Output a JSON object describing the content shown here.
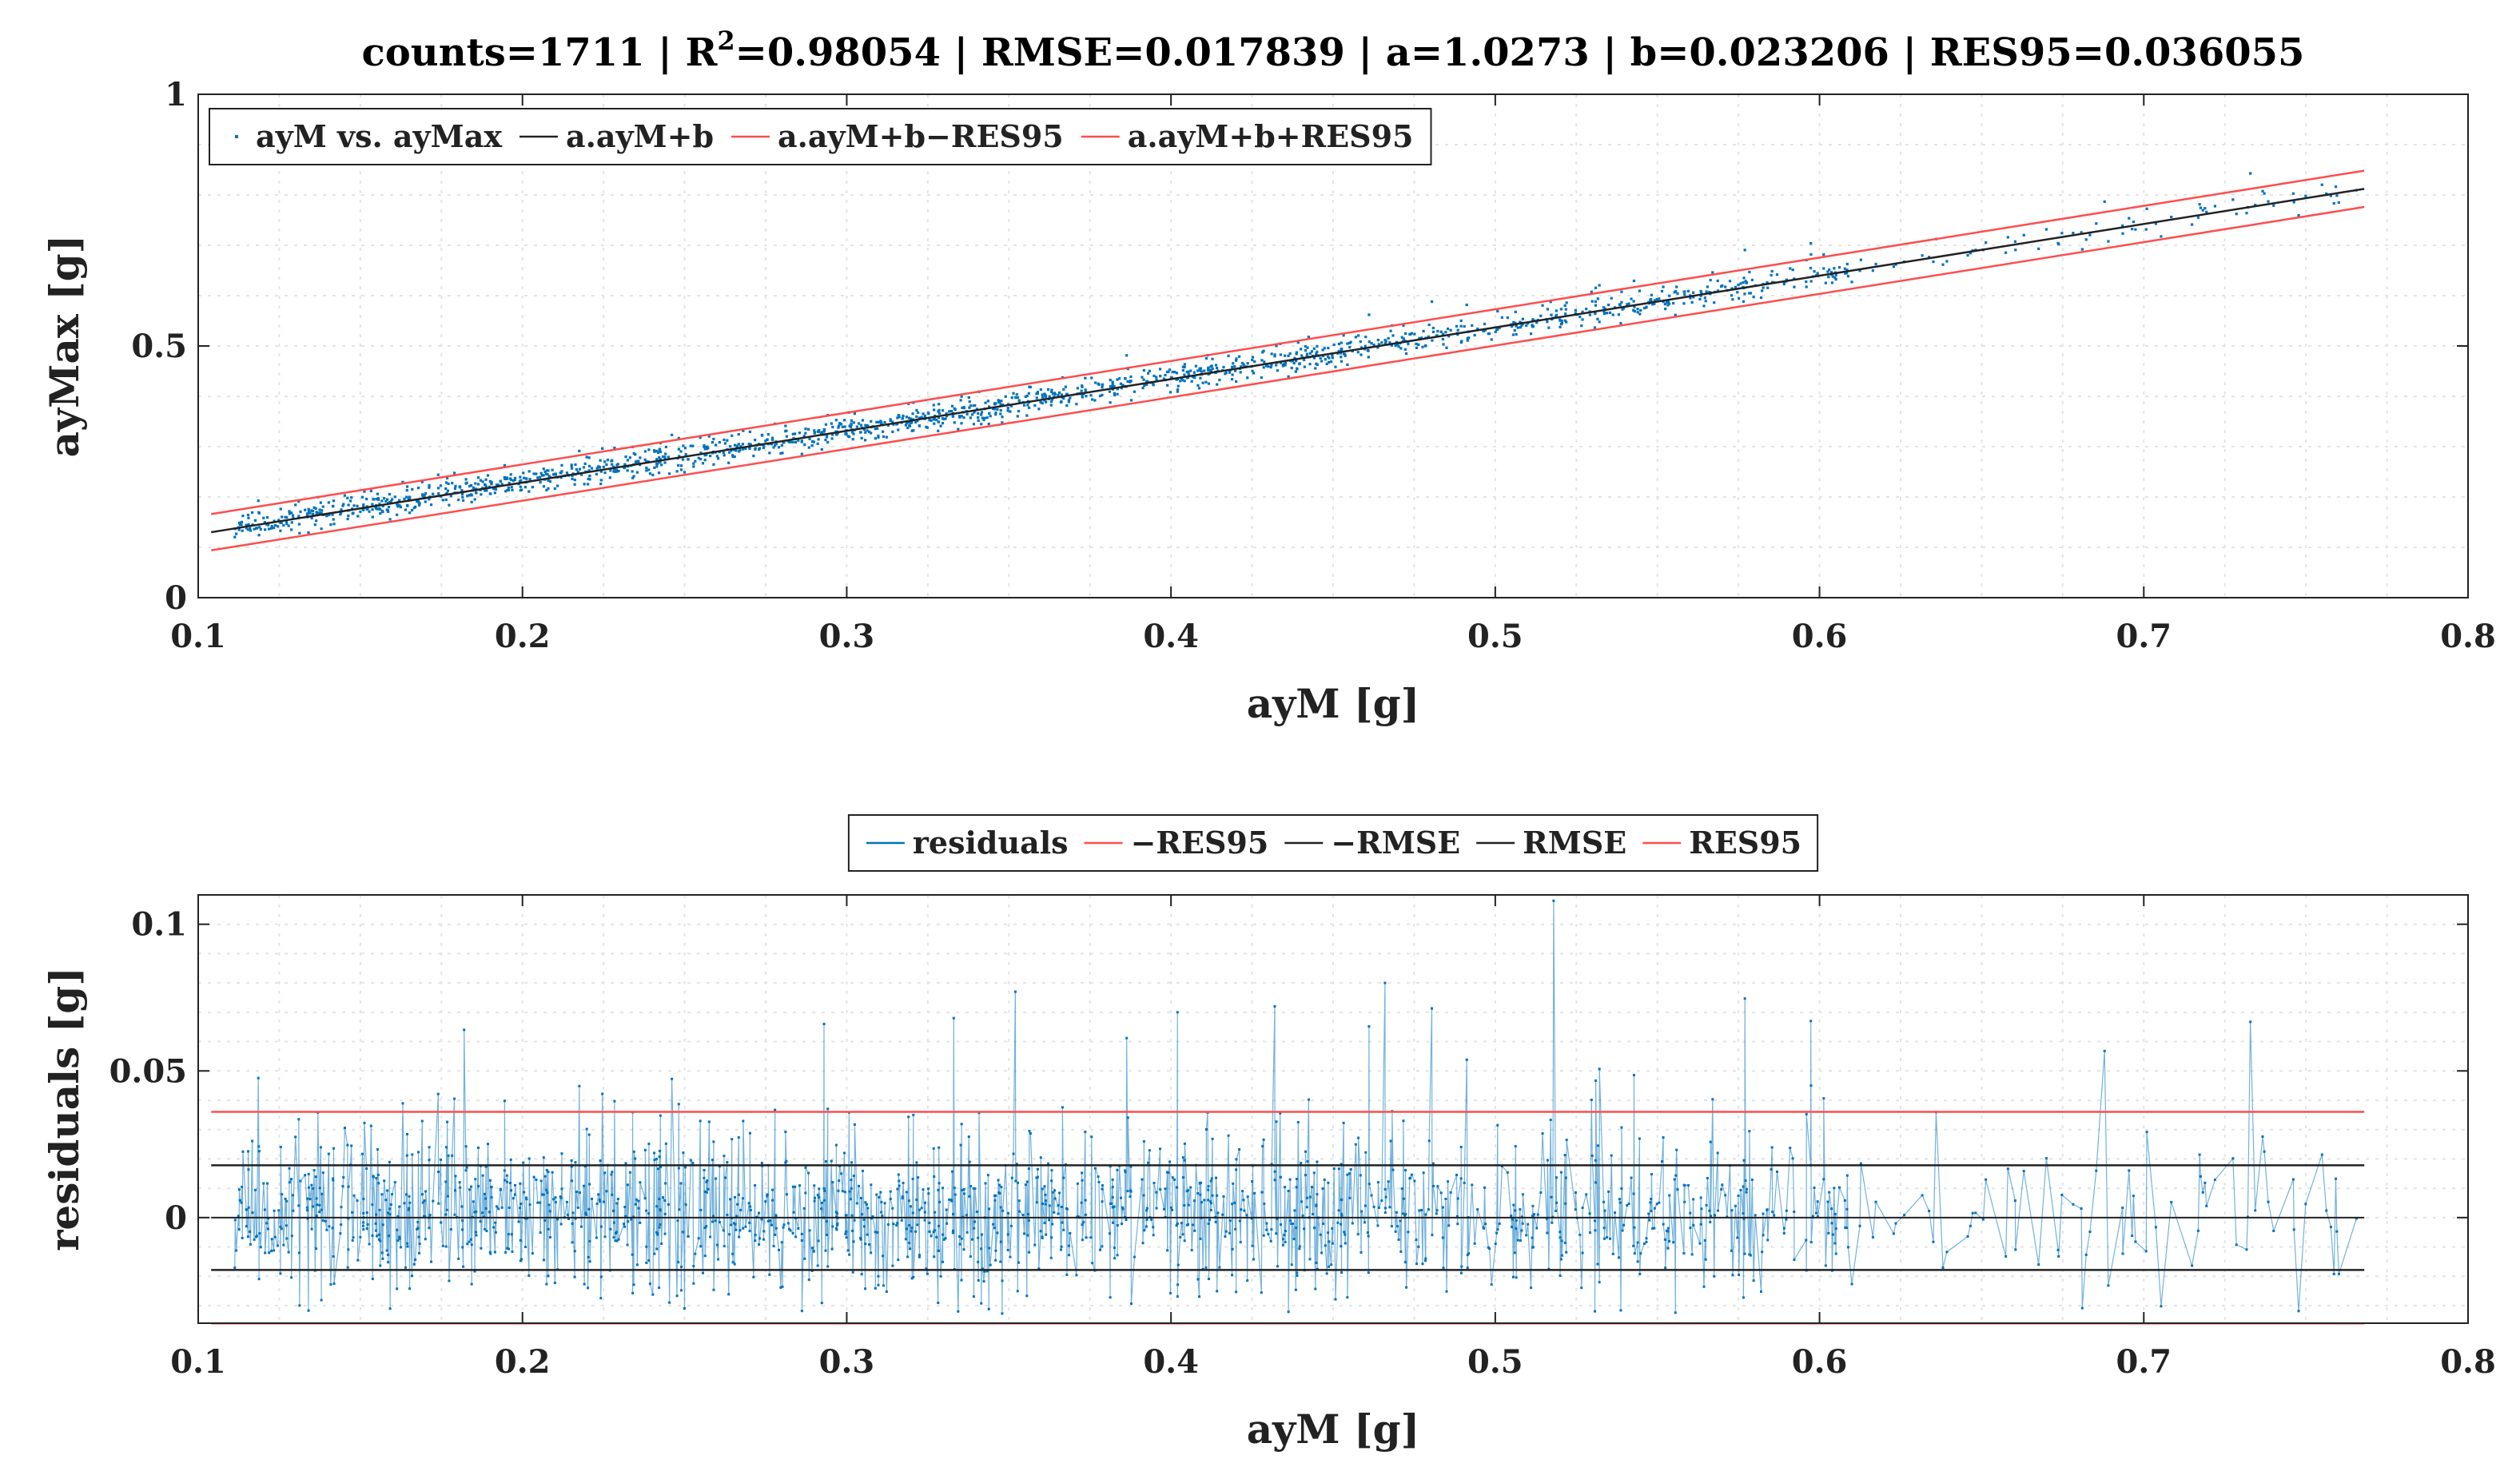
{
  "chart_data": [
    {
      "type": "scatter",
      "title_prefix": "counts=1711 | R",
      "title_sup": "2",
      "title_suffix": "=0.98054 | RMSE=0.017839 | a=1.0273 | b=0.023206 | RES95=0.036055",
      "xlabel": "ayM [g]",
      "ylabel": "ayMax [g]",
      "xlim": [
        0.1,
        0.8
      ],
      "ylim": [
        0,
        1
      ],
      "xticks": [
        "0.1",
        "0.2",
        "0.3",
        "0.4",
        "0.5",
        "0.6",
        "0.7",
        "0.8"
      ],
      "xtick_values": [
        0.1,
        0.2,
        0.3,
        0.4,
        0.5,
        0.6,
        0.7,
        0.8
      ],
      "yticks": [
        "0",
        "0.5",
        "1"
      ],
      "ytick_values": [
        0,
        0.5,
        1
      ],
      "grid": true,
      "legend_position": "top-left",
      "fit": {
        "a": 1.0273,
        "b": 0.023206,
        "res95": 0.036055,
        "x_range": [
          0.104,
          0.768
        ]
      },
      "series": [
        {
          "name": "ayM vs. ayMax",
          "kind": "points",
          "color": "#0072BD",
          "count": 1711
        },
        {
          "name": "a.ayM+b",
          "kind": "line",
          "color": "#222222"
        },
        {
          "name": "a.ayM+b−RES95",
          "kind": "line",
          "color": "#FF4D4D"
        },
        {
          "name": "a.ayM+b+RES95",
          "kind": "line",
          "color": "#FF4D4D"
        }
      ]
    },
    {
      "type": "line",
      "xlabel": "ayM [g]",
      "ylabel": "residuals [g]",
      "xlim": [
        0.1,
        0.8
      ],
      "ylim": [
        -0.036,
        0.11
      ],
      "xticks": [
        "0.1",
        "0.2",
        "0.3",
        "0.4",
        "0.5",
        "0.6",
        "0.7",
        "0.8"
      ],
      "xtick_values": [
        0.1,
        0.2,
        0.3,
        0.4,
        0.5,
        0.6,
        0.7,
        0.8
      ],
      "yticks": [
        "0",
        "0.05",
        "0.1"
      ],
      "ytick_values": [
        0,
        0.05,
        0.1
      ],
      "grid": true,
      "legend_position": "top-center",
      "series": [
        {
          "name": "residuals",
          "kind": "stems",
          "color": "#0072BD"
        },
        {
          "name": "−RES95",
          "kind": "hline",
          "value": -0.036055,
          "color": "#FF4D4D"
        },
        {
          "name": "−RMSE",
          "kind": "hline",
          "value": -0.017839,
          "color": "#222222"
        },
        {
          "name": "RMSE",
          "kind": "hline",
          "value": 0.017839,
          "color": "#222222"
        },
        {
          "name": "RES95",
          "kind": "hline",
          "value": 0.036055,
          "color": "#FF4D4D"
        }
      ],
      "zero_line": 0,
      "highlights": [
        {
          "x": 0.352,
          "y": 0.077
        },
        {
          "x": 0.466,
          "y": 0.08
        },
        {
          "x": 0.518,
          "y": 0.108
        },
        {
          "x": 0.182,
          "y": 0.064
        },
        {
          "x": 0.293,
          "y": 0.066
        },
        {
          "x": 0.402,
          "y": 0.07
        },
        {
          "x": 0.333,
          "y": 0.068
        },
        {
          "x": 0.432,
          "y": 0.072
        }
      ]
    }
  ]
}
